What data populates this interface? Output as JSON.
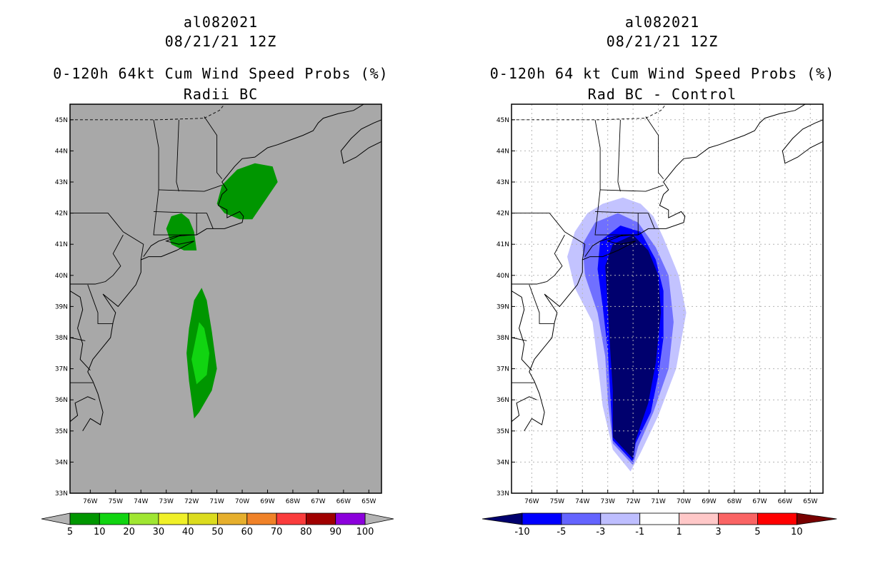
{
  "chart_data": [
    {
      "type": "map",
      "storm_id": "al082021",
      "datetime": "08/21/21 12Z",
      "title": "0-120h 64kt Cum Wind Speed Probs (%)",
      "subtitle": "Radii BC",
      "background": "#a8a8a8",
      "xlim": [
        -76.8,
        -64.5
      ],
      "ylim": [
        33,
        45.5
      ],
      "x_ticks": [
        "76W",
        "75W",
        "74W",
        "73W",
        "72W",
        "71W",
        "70W",
        "69W",
        "68W",
        "67W",
        "66W",
        "65W"
      ],
      "y_ticks": [
        "33N",
        "34N",
        "35N",
        "36N",
        "37N",
        "38N",
        "39N",
        "40N",
        "41N",
        "42N",
        "43N",
        "44N",
        "45N"
      ],
      "colorbar": {
        "labels": [
          "5",
          "10",
          "20",
          "30",
          "40",
          "50",
          "60",
          "70",
          "80",
          "90",
          "100"
        ],
        "colors": [
          "#009600",
          "#11d411",
          "#a0e632",
          "#f0f028",
          "#dcdc1e",
          "#e6af2d",
          "#f08228",
          "#fa3c3c",
          "#a00000",
          "#8c00dc"
        ],
        "extend_color": "#b4b4b4"
      },
      "regions": [
        {
          "level": 5,
          "color": "#009600",
          "points": [
            [
              -71.9,
              35.4
            ],
            [
              -72.1,
              36.6
            ],
            [
              -72.2,
              37.5
            ],
            [
              -72.1,
              38.3
            ],
            [
              -71.9,
              39.2
            ],
            [
              -71.6,
              39.6
            ],
            [
              -71.4,
              39.2
            ],
            [
              -71.2,
              38.2
            ],
            [
              -71.0,
              37.0
            ],
            [
              -71.2,
              36.3
            ],
            [
              -71.7,
              35.6
            ]
          ]
        },
        {
          "level": 10,
          "color": "#11d411",
          "points": [
            [
              -71.8,
              36.5
            ],
            [
              -72.0,
              37.3
            ],
            [
              -71.7,
              38.5
            ],
            [
              -71.5,
              38.3
            ],
            [
              -71.3,
              37.5
            ],
            [
              -71.4,
              36.8
            ]
          ]
        },
        {
          "level": 5,
          "color": "#009600",
          "points": [
            [
              -73.0,
              41.5
            ],
            [
              -72.8,
              41.9
            ],
            [
              -72.4,
              42.0
            ],
            [
              -72.1,
              41.8
            ],
            [
              -71.9,
              41.4
            ],
            [
              -71.8,
              40.8
            ],
            [
              -72.3,
              40.8
            ],
            [
              -72.8,
              41.0
            ]
          ]
        },
        {
          "level": 5,
          "color": "#009600",
          "points": [
            [
              -71.0,
              42.3
            ],
            [
              -70.8,
              42.9
            ],
            [
              -70.2,
              43.4
            ],
            [
              -69.5,
              43.6
            ],
            [
              -68.8,
              43.5
            ],
            [
              -68.6,
              43.0
            ],
            [
              -69.1,
              42.4
            ],
            [
              -69.6,
              41.8
            ],
            [
              -70.1,
              41.8
            ],
            [
              -70.7,
              42.0
            ]
          ]
        }
      ]
    },
    {
      "type": "map",
      "storm_id": "al082021",
      "datetime": "08/21/21 12Z",
      "title": "0-120h 64 kt Cum Wind Speed Probs (%)",
      "subtitle": "Rad BC - Control",
      "background": "#ffffff",
      "xlim": [
        -76.8,
        -64.5
      ],
      "ylim": [
        33,
        45.5
      ],
      "x_ticks": [
        "76W",
        "75W",
        "74W",
        "73W",
        "72W",
        "71W",
        "70W",
        "69W",
        "68W",
        "67W",
        "66W",
        "65W"
      ],
      "y_ticks": [
        "33N",
        "34N",
        "35N",
        "36N",
        "37N",
        "38N",
        "39N",
        "40N",
        "41N",
        "42N",
        "43N",
        "44N",
        "45N"
      ],
      "colorbar": {
        "labels": [
          "-10",
          "-5",
          "-3",
          "-1",
          "1",
          "3",
          "5",
          "10"
        ],
        "colors": [
          "#0000ff",
          "#6464ff",
          "#bebeff",
          "#ffffff",
          "#ffc8c8",
          "#fa6464",
          "#ff0000"
        ],
        "extend_low": "#00006e",
        "extend_high": "#780000"
      },
      "regions": [
        {
          "level": -1,
          "color": "#c3c3ff",
          "points": [
            [
              -72.1,
              33.7
            ],
            [
              -72.8,
              34.4
            ],
            [
              -73.2,
              35.8
            ],
            [
              -73.4,
              37.2
            ],
            [
              -73.6,
              38.5
            ],
            [
              -74.3,
              39.6
            ],
            [
              -74.6,
              40.6
            ],
            [
              -74.3,
              41.4
            ],
            [
              -73.8,
              42.0
            ],
            [
              -73.2,
              42.3
            ],
            [
              -72.4,
              42.5
            ],
            [
              -71.7,
              42.3
            ],
            [
              -71.2,
              41.9
            ],
            [
              -70.8,
              41.2
            ],
            [
              -70.2,
              40.0
            ],
            [
              -69.9,
              38.8
            ],
            [
              -70.3,
              37.0
            ],
            [
              -71.0,
              35.5
            ],
            [
              -71.7,
              34.3
            ]
          ]
        },
        {
          "level": -3,
          "color": "#7070ff",
          "points": [
            [
              -72.0,
              33.9
            ],
            [
              -72.8,
              34.6
            ],
            [
              -73.0,
              36.0
            ],
            [
              -73.1,
              37.4
            ],
            [
              -73.4,
              38.8
            ],
            [
              -73.9,
              40.0
            ],
            [
              -74.0,
              41.0
            ],
            [
              -73.5,
              41.7
            ],
            [
              -72.6,
              42.0
            ],
            [
              -71.8,
              41.7
            ],
            [
              -71.1,
              40.9
            ],
            [
              -70.6,
              40.0
            ],
            [
              -70.4,
              38.5
            ],
            [
              -70.6,
              37.0
            ],
            [
              -71.2,
              35.6
            ],
            [
              -71.8,
              34.5
            ]
          ]
        },
        {
          "level": -5,
          "color": "#0000ff",
          "points": [
            [
              -72.0,
              34.0
            ],
            [
              -72.8,
              34.7
            ],
            [
              -72.9,
              36.2
            ],
            [
              -73.0,
              37.6
            ],
            [
              -73.2,
              39.0
            ],
            [
              -73.4,
              40.2
            ],
            [
              -73.3,
              41.1
            ],
            [
              -72.5,
              41.6
            ],
            [
              -71.7,
              41.4
            ],
            [
              -71.1,
              40.5
            ],
            [
              -70.8,
              39.5
            ],
            [
              -70.8,
              38.0
            ],
            [
              -71.0,
              36.8
            ],
            [
              -71.3,
              35.6
            ],
            [
              -71.9,
              34.6
            ]
          ]
        },
        {
          "level": -10,
          "color": "#00006e",
          "points": [
            [
              -72.0,
              34.1
            ],
            [
              -72.8,
              34.8
            ],
            [
              -72.8,
              36.3
            ],
            [
              -72.9,
              37.6
            ],
            [
              -73.0,
              39.0
            ],
            [
              -73.1,
              40.3
            ],
            [
              -72.8,
              41.0
            ],
            [
              -72.0,
              41.3
            ],
            [
              -71.4,
              40.8
            ],
            [
              -71.0,
              40.0
            ],
            [
              -70.9,
              38.8
            ],
            [
              -71.1,
              37.2
            ],
            [
              -71.4,
              35.9
            ],
            [
              -71.9,
              34.7
            ]
          ]
        }
      ]
    }
  ]
}
